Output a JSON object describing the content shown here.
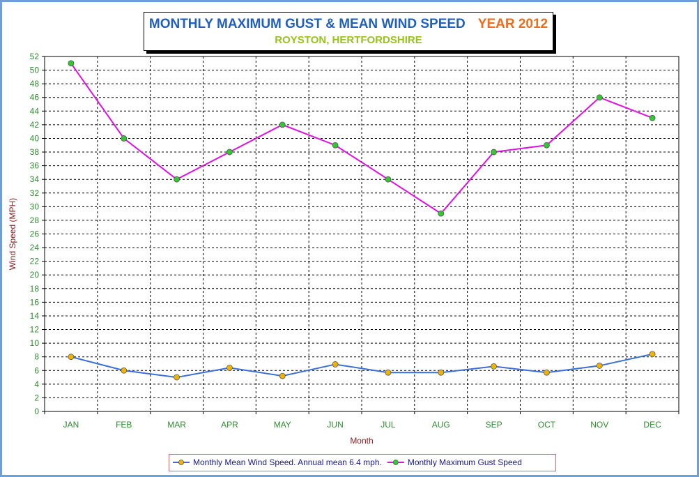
{
  "chart_data": {
    "type": "line",
    "title": "MONTHLY MAXIMUM GUST & MEAN WIND SPEED",
    "title_year": "YEAR 2012",
    "subtitle": "ROYSTON, HERTFORDSHIRE",
    "xlabel": "Month",
    "ylabel": "Wind Speed (MPH)",
    "categories": [
      "JAN",
      "FEB",
      "MAR",
      "APR",
      "MAY",
      "JUN",
      "JUL",
      "AUG",
      "SEP",
      "OCT",
      "NOV",
      "DEC"
    ],
    "ylim": [
      0,
      52
    ],
    "ytick_step": 2,
    "grid": true,
    "legend_position": "bottom",
    "series": [
      {
        "name": "Monthly Mean Wind Speed. Annual mean 6.4 mph.",
        "values": [
          8.0,
          6.0,
          5.0,
          6.4,
          5.2,
          6.9,
          5.7,
          5.7,
          6.6,
          5.7,
          6.7,
          8.4
        ],
        "line_color": "#3a6fd8",
        "marker_color": "#f0b400"
      },
      {
        "name": "Monthly Maximum Gust Speed",
        "values": [
          51,
          40,
          34,
          38,
          42,
          39,
          34,
          29,
          38,
          39,
          46,
          43
        ],
        "line_color": "#e010e0",
        "marker_color": "#32c832"
      }
    ]
  },
  "colors": {
    "frame_border": "#6f9fd8",
    "tick_label": "#2e8b2e",
    "axis_title": "#8b1a1a",
    "legend_text": "#1a1a8c",
    "legend_border": "#f06060"
  }
}
